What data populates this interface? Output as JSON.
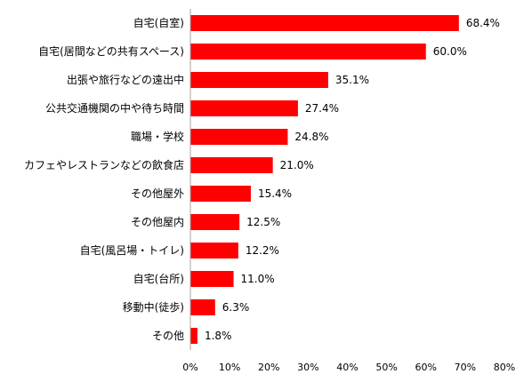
{
  "chart_data": {
    "type": "bar",
    "orientation": "horizontal",
    "title": "",
    "xlabel": "",
    "ylabel": "",
    "categories": [
      "自宅(自室)",
      "自宅(居間などの共有スペース)",
      "出張や旅行などの遠出中",
      "公共交通機関の中や待ち時間",
      "職場・学校",
      "カフェやレストランなどの飲食店",
      "その他屋外",
      "その他屋内",
      "自宅(風呂場・トイレ)",
      "自宅(台所)",
      "移動中(徒歩)",
      "その他"
    ],
    "values": [
      68.4,
      60.0,
      35.1,
      27.4,
      24.8,
      21.0,
      15.4,
      12.5,
      12.2,
      11.0,
      6.3,
      1.8
    ],
    "value_labels": [
      "68.4%",
      "60.0%",
      "35.1%",
      "27.4%",
      "24.8%",
      "21.0%",
      "15.4%",
      "12.5%",
      "12.2%",
      "11.0%",
      "6.3%",
      "1.8%"
    ],
    "x_ticks": [
      "0%",
      "10%",
      "20%",
      "30%",
      "40%",
      "50%",
      "60%",
      "70%",
      "80%"
    ],
    "xlim": [
      0,
      80
    ],
    "grid": false,
    "legend": "none",
    "bar_color": "#ff0000"
  }
}
